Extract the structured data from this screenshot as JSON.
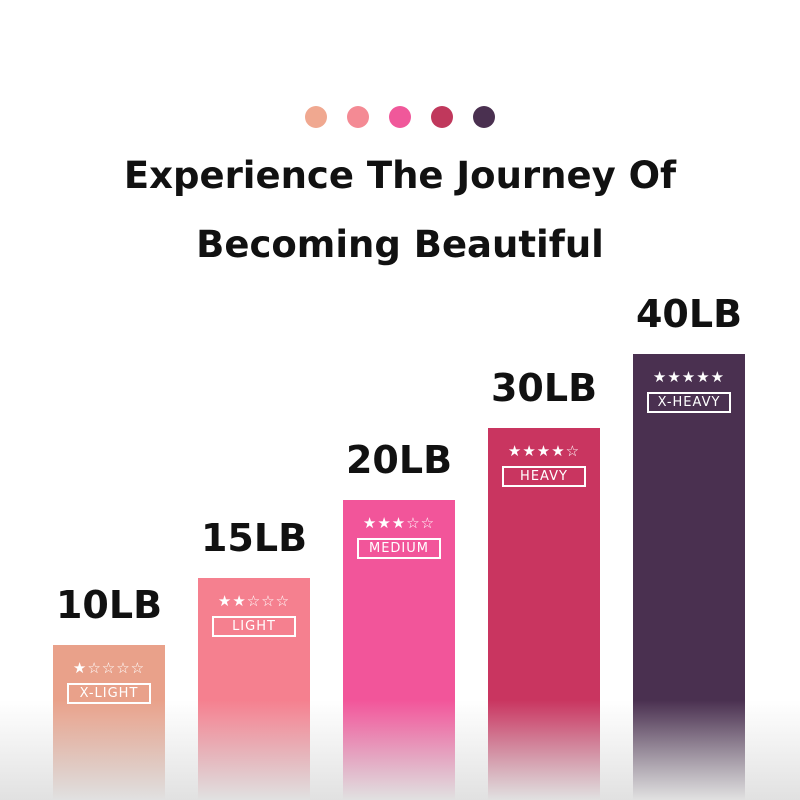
{
  "dots": [
    "#f0a890",
    "#f48a94",
    "#f0589a",
    "#c0385c",
    "#4a3050"
  ],
  "title": {
    "line1": "Experience The Journey Of",
    "line2": "Becoming Beautiful"
  },
  "bands": [
    {
      "weight": "10LB",
      "level": "X-LIGHT",
      "stars": "★☆☆☆☆",
      "rating": 1,
      "color": "#e9a18a"
    },
    {
      "weight": "15LB",
      "level": "LIGHT",
      "stars": "★★☆☆☆",
      "rating": 2,
      "color": "#f5808f"
    },
    {
      "weight": "20LB",
      "level": "MEDIUM",
      "stars": "★★★☆☆",
      "rating": 3,
      "color": "#f2559a"
    },
    {
      "weight": "30LB",
      "level": "HEAVY",
      "stars": "★★★★☆",
      "rating": 4,
      "color": "#c93560"
    },
    {
      "weight": "40LB",
      "level": "X-HEAVY",
      "stars": "★★★★★",
      "rating": 5,
      "color": "#4a3050"
    }
  ]
}
